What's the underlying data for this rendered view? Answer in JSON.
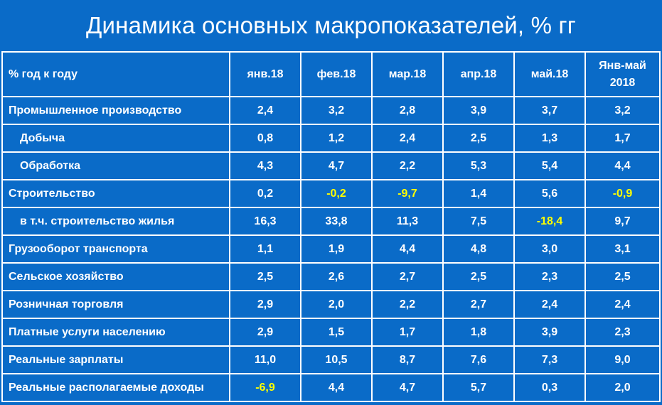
{
  "title": "Динамика основных макропоказателей, % гг",
  "table": {
    "headers": [
      "% год к году",
      "янв.18",
      "фев.18",
      "мар.18",
      "апр.18",
      "май.18",
      "Янв-май 2018"
    ],
    "rows": [
      {
        "label": "Промышленное производство",
        "sub": false,
        "values": [
          "2,4",
          "3,2",
          "2,8",
          "3,9",
          "3,7",
          "3,2"
        ]
      },
      {
        "label": "Добыча",
        "sub": true,
        "values": [
          "0,8",
          "1,2",
          "2,4",
          "2,5",
          "1,3",
          "1,7"
        ]
      },
      {
        "label": "Обработка",
        "sub": true,
        "values": [
          "4,3",
          "4,7",
          "2,2",
          "5,3",
          "5,4",
          "4,4"
        ]
      },
      {
        "label": "Строительство",
        "sub": false,
        "values": [
          "0,2",
          "-0,2",
          "-9,7",
          "1,4",
          "5,6",
          "-0,9"
        ]
      },
      {
        "label": "в т.ч. строительство жилья",
        "sub": true,
        "values": [
          "16,3",
          "33,8",
          "11,3",
          "7,5",
          "-18,4",
          "9,7"
        ]
      },
      {
        "label": "Грузооборот транспорта",
        "sub": false,
        "values": [
          "1,1",
          "1,9",
          "4,4",
          "4,8",
          "3,0",
          "3,1"
        ]
      },
      {
        "label": "Сельское хозяйство",
        "sub": false,
        "values": [
          "2,5",
          "2,6",
          "2,7",
          "2,5",
          "2,3",
          "2,5"
        ]
      },
      {
        "label": "Розничная торговля",
        "sub": false,
        "values": [
          "2,9",
          "2,0",
          "2,2",
          "2,7",
          "2,4",
          "2,4"
        ]
      },
      {
        "label": "Платные услуги населению",
        "sub": false,
        "values": [
          "2,9",
          "1,5",
          "1,7",
          "1,8",
          "3,9",
          "2,3"
        ]
      },
      {
        "label": "Реальные зарплаты",
        "sub": false,
        "values": [
          "11,0",
          "10,5",
          "8,7",
          "7,6",
          "7,3",
          "9,0"
        ]
      },
      {
        "label": "Реальные располагаемые доходы",
        "sub": false,
        "values": [
          "-6,9",
          "4,4",
          "4,7",
          "5,7",
          "0,3",
          "2,0"
        ]
      }
    ]
  },
  "colors": {
    "background": "#0a6bc8",
    "text": "#ffffff",
    "negative": "#ffff00",
    "grid": "#ffffff"
  }
}
